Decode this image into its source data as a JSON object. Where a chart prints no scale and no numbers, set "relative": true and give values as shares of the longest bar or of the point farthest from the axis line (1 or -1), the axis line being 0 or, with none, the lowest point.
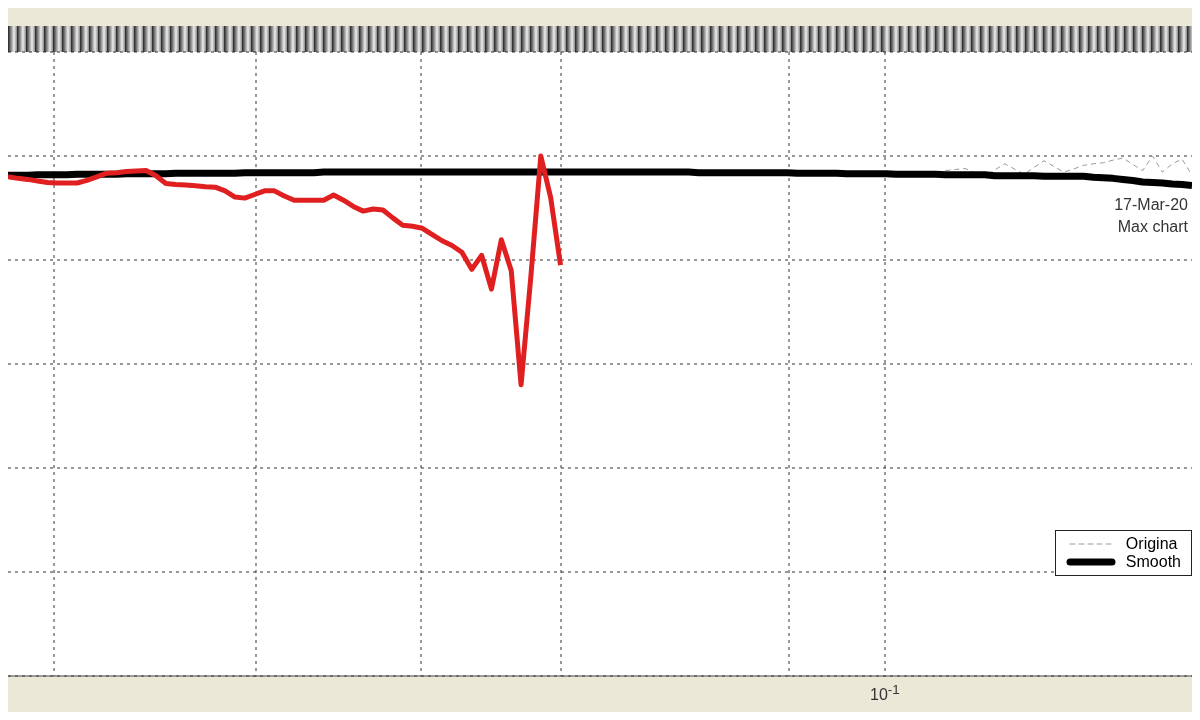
{
  "chart_data": {
    "type": "line",
    "relative": true,
    "grid": true,
    "legend": "bottom right",
    "annotations": [
      "17-Mar-20",
      "Max chart",
      "10$^{-1}$"
    ],
    "categories": [
      null,
      null,
      null,
      null,
      null,
      null,
      null,
      null,
      null,
      null,
      null,
      null,
      null,
      null,
      null,
      null,
      null,
      null,
      null,
      null,
      null,
      null,
      null,
      null,
      null,
      null,
      null,
      null,
      null,
      null,
      null,
      null,
      null,
      null,
      null,
      null,
      null,
      null,
      null,
      null,
      null,
      null,
      null,
      null,
      null,
      null,
      null,
      null,
      null,
      null,
      null,
      null,
      null,
      null,
      null,
      null,
      null,
      null,
      null,
      null,
      null,
      null,
      null,
      null,
      null,
      null,
      null,
      null,
      null,
      null,
      null,
      null,
      null,
      null,
      null,
      null,
      null,
      null,
      null,
      null,
      null,
      null,
      null,
      null,
      null,
      null,
      null,
      null,
      null,
      null,
      null,
      null,
      null,
      null,
      null,
      null,
      null,
      null,
      null,
      null,
      null,
      null,
      null,
      null,
      null,
      null,
      null,
      null,
      null,
      null,
      null,
      null,
      null,
      null,
      null,
      null,
      null,
      null,
      null,
      null,
      null
    ],
    "series": [
      {
        "name": "Origina",
        "color": "#999999",
        "line_style": "dashed",
        "values": [
          null,
          null,
          null,
          null,
          null,
          null,
          null,
          null,
          null,
          null,
          null,
          null,
          null,
          null,
          null,
          null,
          null,
          null,
          null,
          null,
          null,
          null,
          null,
          null,
          null,
          null,
          null,
          null,
          null,
          null,
          null,
          null,
          null,
          null,
          null,
          null,
          null,
          null,
          null,
          null,
          null,
          null,
          null,
          null,
          null,
          null,
          null,
          null,
          null,
          null,
          null,
          null,
          null,
          null,
          null,
          null,
          null,
          null,
          null,
          null,
          null,
          null,
          null,
          null,
          null,
          null,
          null,
          null,
          null,
          null,
          null,
          null,
          null,
          null,
          null,
          null,
          null,
          null,
          null,
          null,
          null,
          null,
          null,
          null,
          null,
          null,
          null,
          null,
          null,
          null,
          null,
          null,
          null,
          null,
          null,
          0.972,
          0.974,
          0.976,
          0.968,
          0.961,
          0.973,
          0.985,
          0.975,
          0.965,
          0.978,
          0.991,
          0.98,
          0.969,
          0.975,
          0.982,
          0.985,
          0.987,
          0.992,
          0.996,
          0.984,
          0.972,
          1.0,
          0.969,
          0.985,
          0.994,
          0.963
        ]
      },
      {
        "name": "Smooth",
        "color": "#000000",
        "line_style": "solid",
        "values": [
          0.963,
          0.963,
          0.963,
          0.964,
          0.964,
          0.964,
          0.964,
          0.965,
          0.965,
          0.965,
          0.965,
          0.965,
          0.966,
          0.966,
          0.966,
          0.966,
          0.966,
          0.967,
          0.967,
          0.967,
          0.967,
          0.967,
          0.967,
          0.967,
          0.968,
          0.968,
          0.968,
          0.968,
          0.968,
          0.968,
          0.968,
          0.968,
          0.969,
          0.969,
          0.969,
          0.969,
          0.969,
          0.969,
          0.969,
          0.969,
          0.969,
          0.969,
          0.969,
          0.969,
          0.969,
          0.969,
          0.969,
          0.969,
          0.969,
          0.969,
          0.969,
          0.969,
          0.969,
          0.969,
          0.969,
          0.969,
          0.969,
          0.969,
          0.969,
          0.969,
          0.969,
          0.969,
          0.969,
          0.969,
          0.969,
          0.969,
          0.969,
          0.969,
          0.969,
          0.969,
          0.968,
          0.968,
          0.968,
          0.968,
          0.968,
          0.968,
          0.968,
          0.968,
          0.968,
          0.968,
          0.967,
          0.967,
          0.967,
          0.967,
          0.967,
          0.966,
          0.966,
          0.966,
          0.966,
          0.966,
          0.965,
          0.965,
          0.965,
          0.965,
          0.965,
          0.964,
          0.964,
          0.964,
          0.964,
          0.964,
          0.962,
          0.962,
          0.962,
          0.962,
          0.962,
          0.961,
          0.961,
          0.961,
          0.961,
          0.961,
          0.959,
          0.958,
          0.957,
          0.955,
          0.953,
          0.95,
          0.949,
          0.948,
          0.946,
          0.945,
          0.943
        ]
      },
      {
        "color": "#e02020",
        "line_style": "solid",
        "values": [
          0.96,
          0.957,
          0.955,
          0.952,
          0.949,
          0.948,
          0.948,
          0.948,
          0.953,
          0.96,
          0.967,
          0.968,
          0.97,
          0.971,
          0.972,
          0.962,
          0.947,
          0.945,
          0.944,
          0.943,
          0.941,
          0.94,
          0.933,
          0.921,
          0.919,
          0.926,
          0.933,
          0.933,
          0.923,
          0.915,
          0.915,
          0.915,
          0.915,
          0.925,
          0.915,
          0.903,
          0.894,
          0.898,
          0.896,
          0.881,
          0.867,
          0.865,
          0.861,
          0.849,
          0.837,
          0.828,
          0.815,
          0.782,
          0.809,
          0.744,
          0.839,
          0.78,
          0.56,
          0.77,
          1.0,
          0.92,
          0.79,
          null,
          null,
          null,
          null,
          null,
          null,
          null,
          null,
          null,
          null,
          null,
          null,
          null,
          null,
          null,
          null,
          null,
          null,
          null,
          null,
          null,
          null,
          null,
          null,
          null,
          null,
          null,
          null,
          null,
          null,
          null,
          null,
          null,
          null,
          null,
          null,
          null,
          null,
          null,
          null,
          null,
          null,
          null,
          null,
          null,
          null,
          null,
          null,
          null,
          null,
          null,
          null,
          null,
          null,
          null,
          null,
          null,
          null,
          null,
          null,
          null,
          null,
          null,
          null
        ]
      }
    ]
  }
}
